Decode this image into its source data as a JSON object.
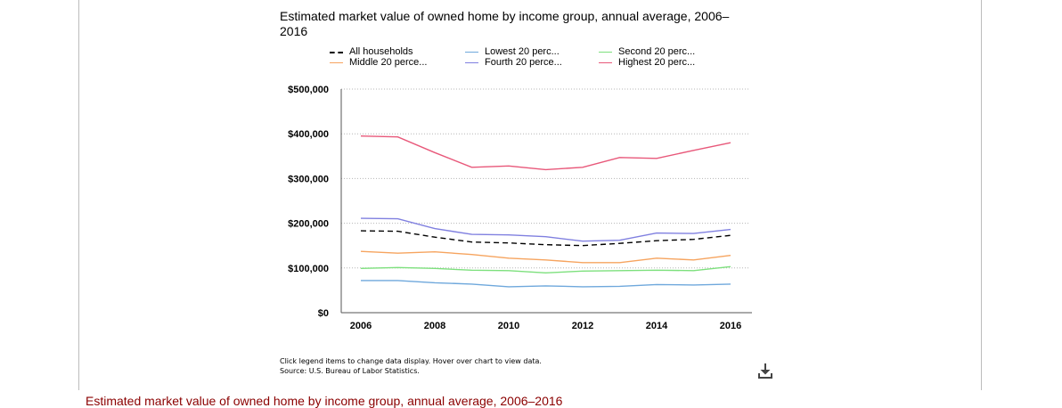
{
  "chart_data": {
    "type": "line",
    "title": "Estimated market value of owned home by income group, annual average, 2006–2016",
    "x": [
      2006,
      2007,
      2008,
      2009,
      2010,
      2011,
      2012,
      2013,
      2014,
      2015,
      2016
    ],
    "xticks": [
      "2006",
      "2008",
      "2010",
      "2012",
      "2014",
      "2016"
    ],
    "yticks": [
      "$0",
      "$100,000",
      "$200,000",
      "$300,000",
      "$400,000",
      "$500,000"
    ],
    "ylim": [
      0,
      500000
    ],
    "grid": "horizontal dotted",
    "legend_position": "top",
    "series": [
      {
        "name": "All households",
        "legend_label": "All households",
        "color": "#000000",
        "dash": true,
        "values": [
          183000,
          182000,
          169000,
          158000,
          156000,
          152000,
          150000,
          155000,
          161000,
          164000,
          173000
        ]
      },
      {
        "name": "Lowest 20 percent",
        "legend_label": "Lowest 20 perc...",
        "color": "#6fa8dc",
        "values": [
          72000,
          72000,
          67000,
          64000,
          58000,
          60000,
          58000,
          59000,
          63000,
          62000,
          64000
        ]
      },
      {
        "name": "Second 20 percent",
        "legend_label": "Second 20 perc...",
        "color": "#7de07d",
        "values": [
          99000,
          101000,
          99000,
          95000,
          94000,
          89000,
          93000,
          94000,
          95000,
          94000,
          103000
        ]
      },
      {
        "name": "Middle 20 percent",
        "legend_label": "Middle 20 perce...",
        "color": "#f6a45f",
        "values": [
          137000,
          133000,
          136000,
          130000,
          122000,
          118000,
          112000,
          112000,
          122000,
          118000,
          128000
        ]
      },
      {
        "name": "Fourth 20 percent",
        "legend_label": "Fourth 20 perce...",
        "color": "#8080e0",
        "values": [
          211000,
          210000,
          188000,
          175000,
          174000,
          170000,
          160000,
          162000,
          178000,
          177000,
          186000
        ]
      },
      {
        "name": "Highest 20 percent",
        "legend_label": "Highest 20 perc...",
        "color": "#e8587a",
        "values": [
          395000,
          393000,
          358000,
          325000,
          328000,
          320000,
          325000,
          347000,
          345000,
          363000,
          380000
        ]
      }
    ]
  },
  "notes": {
    "line1": "Click legend items to change data display. Hover over chart to view data.",
    "line2": "Source: U.S. Bureau of Labor Statistics."
  },
  "icons": {
    "download": "download-icon"
  },
  "below_title": "Estimated market value of owned home by income group, annual average, 2006–2016"
}
